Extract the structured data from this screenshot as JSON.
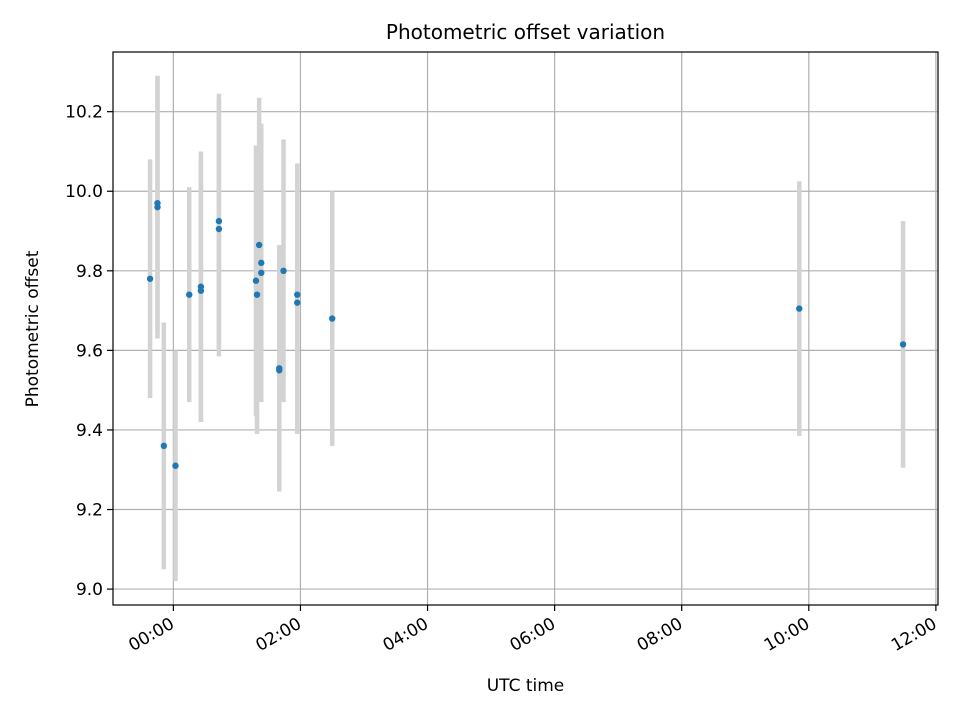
{
  "chart_data": {
    "type": "scatter",
    "title": "Photometric offset variation",
    "xlabel": "UTC time",
    "ylabel": "Photometric offset",
    "x_axis_kind": "time",
    "xlim": [
      "-00:57",
      "12:02"
    ],
    "ylim": [
      8.96,
      10.35
    ],
    "x_ticks": [
      "00:00",
      "02:00",
      "04:00",
      "06:00",
      "08:00",
      "10:00",
      "12:00"
    ],
    "y_ticks": [
      "9.0",
      "9.2",
      "9.4",
      "9.6",
      "9.8",
      "10.0",
      "10.2"
    ],
    "grid": true,
    "legend": "none",
    "colors": {
      "points": "#1f77b4",
      "errorbars": "#d3d3d3",
      "grid": "#b0b0b0"
    },
    "series": [
      {
        "points": [
          {
            "x": "-00:22",
            "y": 9.78,
            "err": 0.3
          },
          {
            "x": "-00:15",
            "y": 9.97,
            "err": 0.32
          },
          {
            "x": "-00:15",
            "y": 9.96,
            "err": 0.33
          },
          {
            "x": "-00:09",
            "y": 9.36,
            "err": 0.31
          },
          {
            "x": "00:02",
            "y": 9.31,
            "err": 0.29
          },
          {
            "x": "00:15",
            "y": 9.74,
            "err": 0.27
          },
          {
            "x": "00:26",
            "y": 9.76,
            "err": 0.34
          },
          {
            "x": "00:26",
            "y": 9.75,
            "err": 0.33
          },
          {
            "x": "00:43",
            "y": 9.925,
            "err": 0.32
          },
          {
            "x": "00:43",
            "y": 9.905,
            "err": 0.32
          },
          {
            "x": "01:18",
            "y": 9.775,
            "err": 0.34
          },
          {
            "x": "01:19",
            "y": 9.74,
            "err": 0.35
          },
          {
            "x": "01:21",
            "y": 9.865,
            "err": 0.37
          },
          {
            "x": "01:23",
            "y": 9.82,
            "err": 0.35
          },
          {
            "x": "01:23",
            "y": 9.795,
            "err": 0.32
          },
          {
            "x": "01:40",
            "y": 9.555,
            "err": 0.31
          },
          {
            "x": "01:40",
            "y": 9.55,
            "err": 0.29
          },
          {
            "x": "01:44",
            "y": 9.8,
            "err": 0.33
          },
          {
            "x": "01:57",
            "y": 9.74,
            "err": 0.33
          },
          {
            "x": "01:57",
            "y": 9.72,
            "err": 0.33
          },
          {
            "x": "02:30",
            "y": 9.68,
            "err": 0.32
          },
          {
            "x": "09:51",
            "y": 9.705,
            "err": 0.32
          },
          {
            "x": "11:29",
            "y": 9.615,
            "err": 0.31
          }
        ]
      }
    ]
  }
}
